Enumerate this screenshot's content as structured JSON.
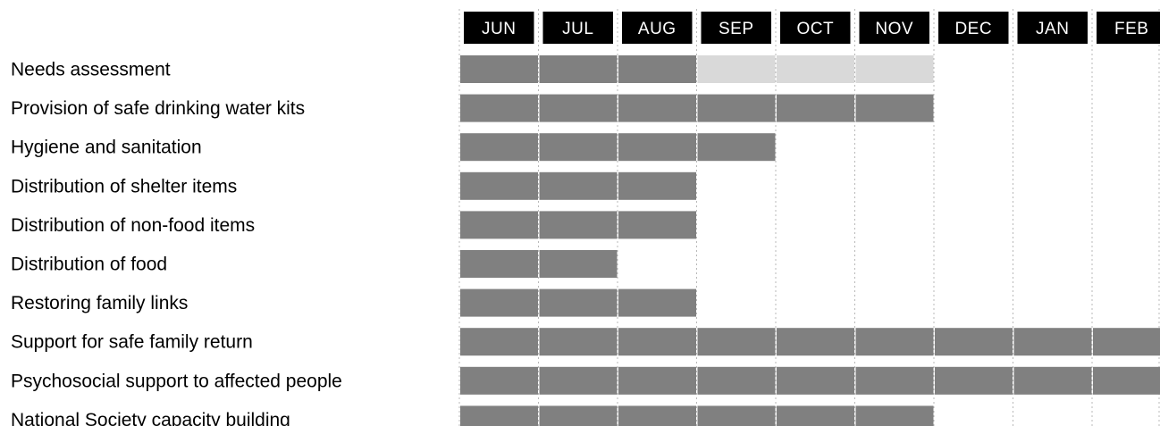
{
  "chart_data": {
    "type": "gantt",
    "months": [
      "JUN",
      "JUL",
      "AUG",
      "SEP",
      "OCT",
      "NOV",
      "DEC",
      "JAN",
      "FEB"
    ],
    "tasks": [
      {
        "label": "Needs assessment",
        "segments": [
          {
            "start": "JUN",
            "end": "AUG",
            "status": "active"
          },
          {
            "start": "SEP",
            "end": "NOV",
            "status": "light"
          }
        ]
      },
      {
        "label": "Provision of safe drinking water kits",
        "segments": [
          {
            "start": "JUN",
            "end": "NOV",
            "status": "active"
          }
        ]
      },
      {
        "label": "Hygiene and sanitation",
        "segments": [
          {
            "start": "JUN",
            "end": "SEP",
            "status": "active"
          }
        ]
      },
      {
        "label": "Distribution of shelter items",
        "segments": [
          {
            "start": "JUN",
            "end": "AUG",
            "status": "active"
          }
        ]
      },
      {
        "label": "Distribution of non-food items",
        "segments": [
          {
            "start": "JUN",
            "end": "AUG",
            "status": "active"
          }
        ]
      },
      {
        "label": "Distribution of food",
        "segments": [
          {
            "start": "JUN",
            "end": "JUL",
            "status": "active"
          }
        ]
      },
      {
        "label": "Restoring family links",
        "segments": [
          {
            "start": "JUN",
            "end": "AUG",
            "status": "active"
          }
        ]
      },
      {
        "label": "Support for safe family return",
        "segments": [
          {
            "start": "JUN",
            "end": "FEB",
            "status": "active"
          }
        ]
      },
      {
        "label": "Psychosocial support to affected people",
        "segments": [
          {
            "start": "JUN",
            "end": "FEB",
            "status": "active"
          }
        ]
      },
      {
        "label": "National Society capacity building",
        "segments": [
          {
            "start": "JUN",
            "end": "NOV",
            "status": "active"
          }
        ]
      }
    ],
    "colors": {
      "active": "#808080",
      "light": "#d9d9d9",
      "header_bg": "#000000",
      "header_text": "#ffffff",
      "grid": "#b8b8b8"
    },
    "grid": true
  }
}
